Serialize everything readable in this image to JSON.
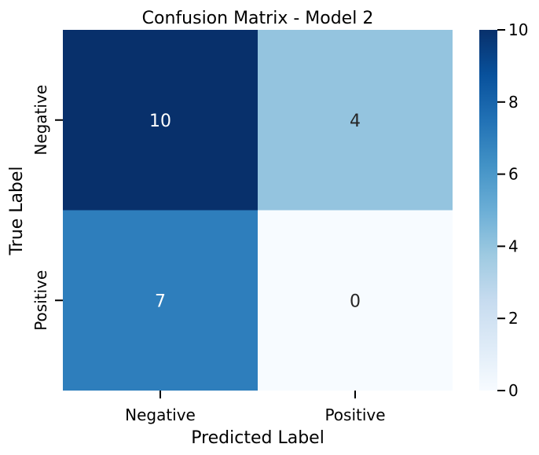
{
  "chart_data": {
    "type": "heatmap",
    "title": "Confusion Matrix - Model 2",
    "xlabel": "Predicted Label",
    "ylabel": "True Label",
    "x_categories": [
      "Negative",
      "Positive"
    ],
    "y_categories": [
      "Negative",
      "Positive"
    ],
    "values": [
      [
        10,
        4
      ],
      [
        7,
        0
      ]
    ],
    "colorbar": {
      "min": 0,
      "max": 10,
      "ticks": [
        0,
        2,
        4,
        6,
        8,
        10
      ]
    },
    "colormap": "Blues",
    "grid": false
  }
}
